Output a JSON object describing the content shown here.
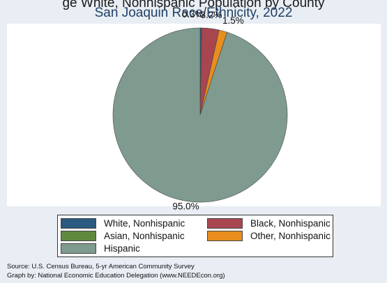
{
  "header_cut_text": "ge White, Nonhispanic Population by County",
  "chart_data": {
    "type": "pie",
    "title": "San Joaquin Race/Ethnicity, 2022",
    "slices": [
      {
        "name": "White, Nonhispanic",
        "value": 0.3,
        "label": "0.3%",
        "color": "#2b5a82"
      },
      {
        "name": "Black, Nonhispanic",
        "value": 3.2,
        "label": "3.2%",
        "color": "#a8464f"
      },
      {
        "name": "Asian, Nonhispanic",
        "value": 0.0,
        "label": "",
        "color": "#5f8a3e"
      },
      {
        "name": "Other, Nonhispanic",
        "value": 1.5,
        "label": "1.5%",
        "color": "#e88d1e"
      },
      {
        "name": "Hispanic",
        "value": 95.0,
        "label": "95.0%",
        "color": "#7f9b90"
      }
    ],
    "legend_position": "bottom"
  },
  "source": "Source:  U.S. Census Bureau, 5-yr American Community Survey",
  "credit": "Graph by: National Economic Education Delegation (www.NEEDEcon.org)"
}
